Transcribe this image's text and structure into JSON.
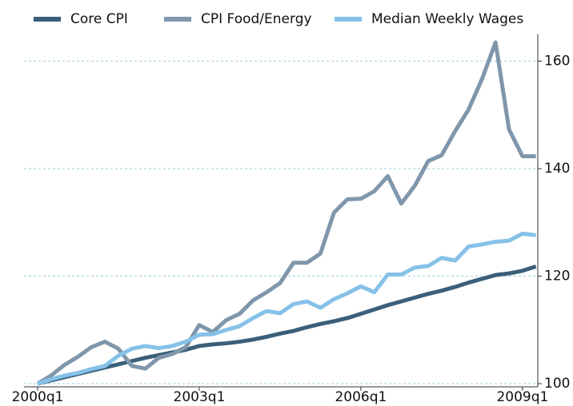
{
  "chart_data": {
    "type": "line",
    "categories": [
      "2000q1",
      null,
      null,
      null,
      null,
      null,
      null,
      null,
      null,
      null,
      null,
      null,
      "2003q1",
      null,
      null,
      null,
      null,
      null,
      null,
      null,
      null,
      null,
      null,
      null,
      "2006q1",
      null,
      null,
      null,
      null,
      null,
      null,
      null,
      null,
      null,
      null,
      null,
      "2009q1",
      null
    ],
    "series": [
      {
        "name": "Core CPI",
        "color": "#3a5f7a",
        "values": [
          100,
          100.6,
          101.2,
          101.8,
          102.4,
          103.0,
          103.6,
          104.2,
          104.8,
          105.3,
          105.8,
          106.3,
          107.0,
          107.3,
          107.5,
          107.8,
          108.2,
          108.7,
          109.3,
          109.8,
          110.5,
          111.1,
          111.6,
          112.2,
          113.0,
          113.8,
          114.6,
          115.3,
          116.0,
          116.7,
          117.3,
          118.0,
          118.8,
          119.5,
          120.2,
          120.5,
          121.0,
          121.8
        ]
      },
      {
        "name": "CPI Food/Energy",
        "color": "#8096ab",
        "values": [
          100,
          101.5,
          103.5,
          105.0,
          106.8,
          107.8,
          106.5,
          103.3,
          102.8,
          104.8,
          105.5,
          106.8,
          110.9,
          109.6,
          111.8,
          113.0,
          115.5,
          117.0,
          118.7,
          122.5,
          122.5,
          124.2,
          131.8,
          134.3,
          134.4,
          135.8,
          138.6,
          133.5,
          136.8,
          141.4,
          142.5,
          147.0,
          151.0,
          156.7,
          163.5,
          147.3,
          142.3,
          142.3
        ]
      },
      {
        "name": "Median Weekly Wages",
        "color": "#86c1e8",
        "values": [
          100,
          100.8,
          101.5,
          102.0,
          102.7,
          103.3,
          105.2,
          106.5,
          107.0,
          106.6,
          107.0,
          107.8,
          109.1,
          109.2,
          110.0,
          110.7,
          112.2,
          113.5,
          113.1,
          114.8,
          115.3,
          114.1,
          115.7,
          116.8,
          118.1,
          117.0,
          120.3,
          120.3,
          121.6,
          121.9,
          123.4,
          122.9,
          125.5,
          125.9,
          126.4,
          126.6,
          127.9,
          127.6
        ]
      }
    ],
    "ylim": [
      100,
      165
    ],
    "yticks": [
      100,
      120,
      140,
      160
    ],
    "grid": true,
    "y_axis_side": "right",
    "legend": "top"
  }
}
